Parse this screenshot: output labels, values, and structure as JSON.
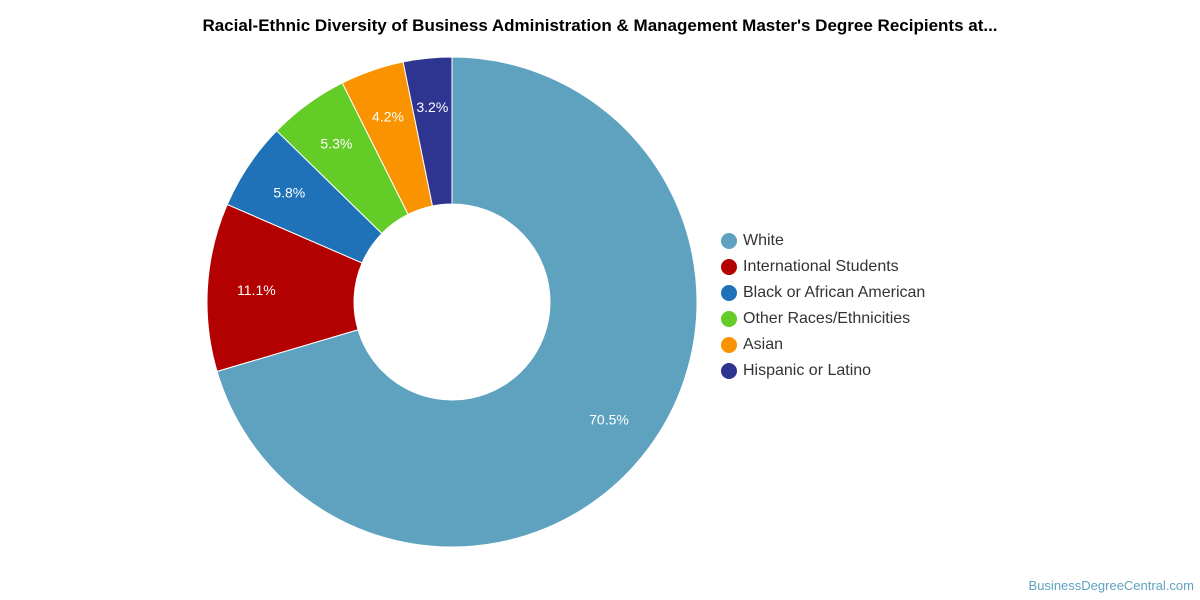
{
  "footer": {
    "credit": "BusinessDegreeCentral.com"
  },
  "chart_data": {
    "type": "pie",
    "variant": "donut",
    "title": "Racial-Ethnic Diversity of Business Administration & Management Master's Degree Recipients at...",
    "unit": "%",
    "legend_position": "right",
    "slices": [
      {
        "label": "White",
        "value": 70.5,
        "display": "70.5%",
        "color": "#5fa2c0"
      },
      {
        "label": "International Students",
        "value": 11.1,
        "display": "11.1%",
        "color": "#b30000"
      },
      {
        "label": "Black or African American",
        "value": 5.8,
        "display": "5.8%",
        "color": "#1f72b8"
      },
      {
        "label": "Other Races/Ethnicities",
        "value": 5.3,
        "display": "5.3%",
        "color": "#64cc27"
      },
      {
        "label": "Asian",
        "value": 4.2,
        "display": "4.2%",
        "color": "#f99300"
      },
      {
        "label": "Hispanic or Latino",
        "value": 3.2,
        "display": "3.2%",
        "color": "#2e3590"
      }
    ]
  }
}
